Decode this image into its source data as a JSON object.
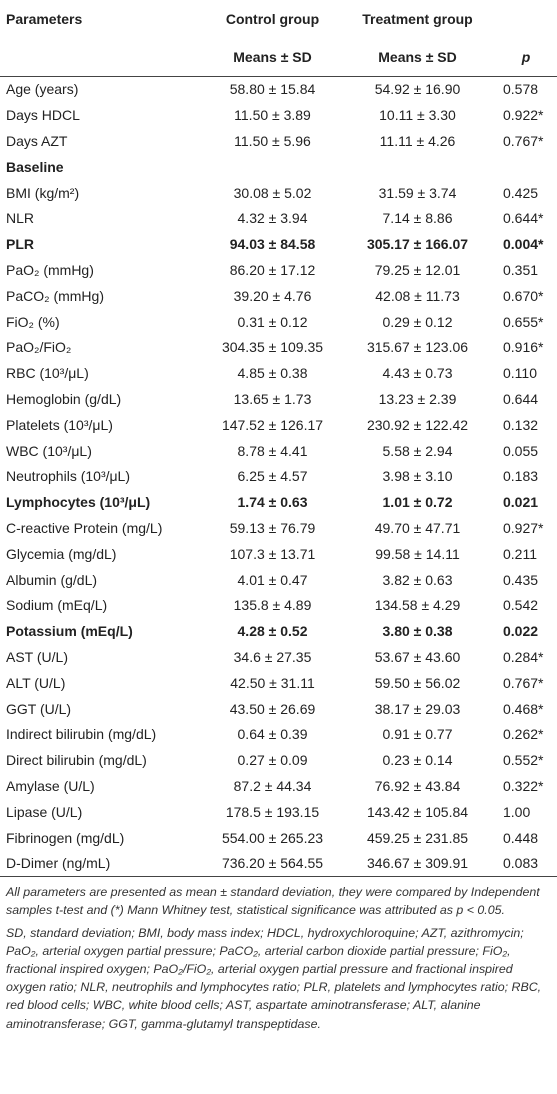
{
  "table": {
    "header": {
      "parameters": "Parameters",
      "control": "Control group",
      "treatment": "Treatment group",
      "control_sub": "Means ± SD",
      "treatment_sub": "Means ± SD",
      "p": "p"
    },
    "rows": [
      {
        "label": "Age (years)",
        "control": "58.80 ± 15.84",
        "treatment": "54.92 ± 16.90",
        "p": "0.578"
      },
      {
        "label": "Days HDCL",
        "control": "11.50 ± 3.89",
        "treatment": "10.11 ± 3.30",
        "p": "0.922*"
      },
      {
        "label": "Days AZT",
        "control": "11.50 ± 5.96",
        "treatment": "11.11 ± 4.26",
        "p": "0.767*"
      },
      {
        "label": "Baseline",
        "bold": true
      },
      {
        "label": "BMI (kg/m²)",
        "control": "30.08 ± 5.02",
        "treatment": "31.59 ± 3.74",
        "p": "0.425"
      },
      {
        "label": "NLR",
        "control": "4.32 ± 3.94",
        "treatment": "7.14 ± 8.86",
        "p": "0.644*"
      },
      {
        "label": "PLR",
        "bold": true,
        "control": "94.03 ± 84.58",
        "treatment": "305.17 ± 166.07",
        "p": "0.004*"
      },
      {
        "label": "PaO₂ (mmHg)",
        "control": "86.20 ± 17.12",
        "treatment": "79.25 ± 12.01",
        "p": "0.351"
      },
      {
        "label": "PaCO₂ (mmHg)",
        "control": "39.20 ± 4.76",
        "treatment": "42.08 ± 11.73",
        "p": "0.670*"
      },
      {
        "label": "FiO₂ (%)",
        "control": "0.31 ± 0.12",
        "treatment": "0.29 ± 0.12",
        "p": "0.655*"
      },
      {
        "label": "PaO₂/FiO₂",
        "control": "304.35 ± 109.35",
        "treatment": "315.67 ± 123.06",
        "p": "0.916*"
      },
      {
        "label": "RBC (10³/μL)",
        "control": "4.85 ± 0.38",
        "treatment": "4.43 ± 0.73",
        "p": "0.110"
      },
      {
        "label": "Hemoglobin (g/dL)",
        "control": "13.65 ± 1.73",
        "treatment": "13.23 ± 2.39",
        "p": "0.644"
      },
      {
        "label": "Platelets (10³/μL)",
        "control": "147.52 ± 126.17",
        "treatment": "230.92 ± 122.42",
        "p": "0.132"
      },
      {
        "label": "WBC (10³/μL)",
        "control": "8.78 ± 4.41",
        "treatment": "5.58 ± 2.94",
        "p": "0.055"
      },
      {
        "label": "Neutrophils (10³/μL)",
        "control": "6.25 ± 4.57",
        "treatment": "3.98 ± 3.10",
        "p": "0.183"
      },
      {
        "label": "Lymphocytes (10³/μL)",
        "bold": true,
        "control": "1.74 ± 0.63",
        "treatment": "1.01 ± 0.72",
        "p": "0.021"
      },
      {
        "label": "C-reactive Protein (mg/L)",
        "control": "59.13 ± 76.79",
        "treatment": "49.70 ± 47.71",
        "p": "0.927*"
      },
      {
        "label": "Glycemia (mg/dL)",
        "control": "107.3 ± 13.71",
        "treatment": "99.58 ± 14.11",
        "p": "0.211"
      },
      {
        "label": "Albumin (g/dL)",
        "control": "4.01 ± 0.47",
        "treatment": "3.82 ± 0.63",
        "p": "0.435"
      },
      {
        "label": "Sodium (mEq/L)",
        "control": "135.8 ± 4.89",
        "treatment": "134.58 ± 4.29",
        "p": "0.542"
      },
      {
        "label": "Potassium (mEq/L)",
        "bold": true,
        "control": "4.28 ± 0.52",
        "treatment": "3.80 ± 0.38",
        "p": "0.022"
      },
      {
        "label": "AST (U/L)",
        "control": "34.6 ± 27.35",
        "treatment": "53.67 ± 43.60",
        "p": "0.284*"
      },
      {
        "label": "ALT (U/L)",
        "control": "42.50 ± 31.11",
        "treatment": "59.50 ± 56.02",
        "p": "0.767*"
      },
      {
        "label": "GGT (U/L)",
        "control": "43.50 ± 26.69",
        "treatment": "38.17 ± 29.03",
        "p": "0.468*"
      },
      {
        "label": "Indirect bilirubin (mg/dL)",
        "control": "0.64 ± 0.39",
        "treatment": "0.91 ± 0.77",
        "p": "0.262*"
      },
      {
        "label": "Direct bilirubin (mg/dL)",
        "control": "0.27 ± 0.09",
        "treatment": "0.23 ± 0.14",
        "p": "0.552*"
      },
      {
        "label": "Amylase (U/L)",
        "control": "87.2 ± 44.34",
        "treatment": "76.92 ± 43.84",
        "p": "0.322*"
      },
      {
        "label": "Lipase (U/L)",
        "control": "178.5 ± 193.15",
        "treatment": "143.42 ± 105.84",
        "p": "1.00"
      },
      {
        "label": "Fibrinogen (mg/dL)",
        "control": "554.00 ± 265.23",
        "treatment": "459.25 ± 231.85",
        "p": "0.448"
      },
      {
        "label": "D-Dimer (ng/mL)",
        "control": "736.20 ± 564.55",
        "treatment": "346.67 ± 309.91",
        "p": "0.083"
      }
    ]
  },
  "footnotes": [
    "All parameters are presented as mean ± standard deviation, they were compared by Independent samples t-test and (*) Mann Whitney test, statistical significance was attributed as p < 0.05.",
    "SD, standard deviation; BMI, body mass index; HDCL, hydroxychloroquine; AZT, azithromycin; PaO₂, arterial oxygen partial pressure; PaCO₂, arterial carbon dioxide partial pressure; FiO₂, fractional inspired oxygen; PaO₂/FiO₂, arterial oxygen partial pressure and fractional inspired oxygen ratio; NLR, neutrophils and lymphocytes ratio; PLR, platelets and lymphocytes ratio; RBC, red blood cells; WBC, white blood cells; AST, aspartate aminotransferase; ALT, alanine aminotransferase; GGT, gamma-glutamyl transpeptidase."
  ]
}
